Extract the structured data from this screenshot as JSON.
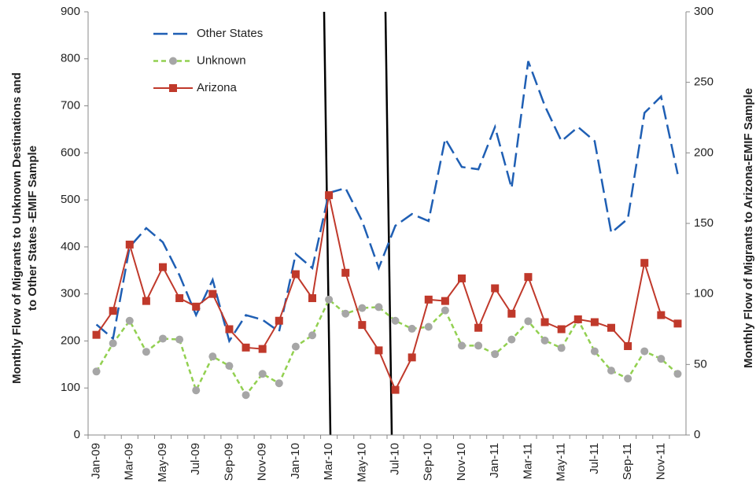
{
  "chart_data": {
    "type": "line",
    "categories": [
      "Jan-09",
      null,
      "Mar-09",
      null,
      "May-09",
      null,
      "Jul-09",
      null,
      "Sep-09",
      null,
      "Nov-09",
      null,
      "Jan-10",
      null,
      "Mar-10",
      null,
      "May-10",
      null,
      "Jul-10",
      null,
      "Sep-10",
      null,
      "Nov-10",
      null,
      "Jan-11",
      null,
      "Mar-11",
      null,
      "May-11",
      null,
      "Jul-11",
      null,
      "Sep-11",
      null,
      "Nov-11",
      null
    ],
    "y_label": "Monthly Flow of Migrants to Unknown Destinations and to Other States -EMIF Sample",
    "y2_label": "Monthly Flow of Migrants to Arizona-EMIF Sample",
    "ylim": [
      0,
      900
    ],
    "yticks": [
      0,
      100,
      200,
      300,
      400,
      500,
      600,
      700,
      800,
      900
    ],
    "y2lim": [
      0,
      300
    ],
    "y2ticks": [
      0,
      50,
      100,
      150,
      200,
      250,
      300
    ],
    "series": [
      {
        "name": "Other States",
        "color": "#1f5fb4",
        "style": "dashed",
        "values": [
          235,
          205,
          400,
          440,
          410,
          340,
          255,
          330,
          200,
          255,
          245,
          220,
          385,
          355,
          515,
          525,
          455,
          355,
          445,
          470,
          455,
          630,
          570,
          565,
          655,
          525,
          795,
          700,
          625,
          655,
          625,
          430,
          460,
          685,
          720,
          555
        ]
      },
      {
        "name": "Unknown",
        "color": "#92d050",
        "marker_color": "#a6a6a6",
        "style": "dashed",
        "marker": "circle",
        "values": [
          135,
          195,
          243,
          177,
          205,
          203,
          95,
          167,
          147,
          85,
          130,
          110,
          188,
          212,
          288,
          258,
          270,
          272,
          243,
          226,
          230,
          265,
          190,
          190,
          172,
          203,
          242,
          201,
          185,
          245,
          178,
          137,
          120,
          178,
          162,
          130
        ]
      },
      {
        "name": "Arizona",
        "color": "#c0392b",
        "style": "solid",
        "marker": "square",
        "axis": "y2",
        "values": [
          71,
          88,
          135,
          95,
          119,
          97,
          91,
          100,
          75,
          62,
          61,
          81,
          114,
          97,
          170,
          115,
          78,
          60,
          32,
          55,
          96,
          95,
          111,
          76,
          104,
          86,
          112,
          80,
          75,
          82,
          80,
          76,
          63,
          122,
          85,
          79
        ]
      }
    ]
  }
}
